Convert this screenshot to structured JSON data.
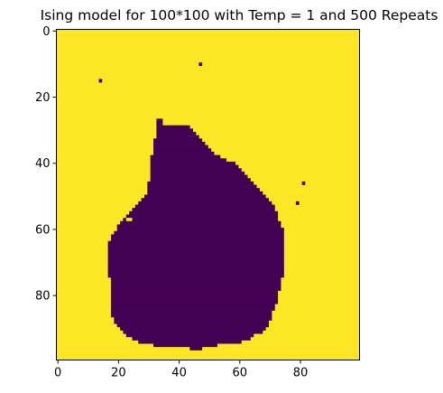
{
  "chart_data": {
    "type": "heatmap",
    "title": "Ising model for 100*100 with Temp = 1 and 500 Repeats",
    "xlabel": "",
    "ylabel": "",
    "grid_size": [
      100,
      100
    ],
    "xlim": [
      -0.5,
      99.5
    ],
    "ylim": [
      99.5,
      -0.5
    ],
    "xticks": [
      0,
      20,
      40,
      60,
      80
    ],
    "yticks": [
      0,
      20,
      40,
      60,
      80
    ],
    "grid": false,
    "colormap": "viridis",
    "colors": {
      "spin_up": "#fde725",
      "spin_down": "#440154"
    },
    "background_value": 1,
    "down_region": {
      "row_start": 27,
      "row_end": 96,
      "spans": [
        [
          27,
          33,
          34
        ],
        [
          28,
          33,
          34
        ],
        [
          29,
          33,
          43
        ],
        [
          30,
          33,
          44
        ],
        [
          31,
          33,
          45
        ],
        [
          32,
          33,
          46
        ],
        [
          33,
          32,
          47
        ],
        [
          34,
          32,
          48
        ],
        [
          35,
          32,
          49
        ],
        [
          36,
          32,
          50
        ],
        [
          37,
          32,
          51
        ],
        [
          38,
          31,
          53
        ],
        [
          39,
          31,
          55
        ],
        [
          40,
          31,
          58
        ],
        [
          41,
          31,
          59
        ],
        [
          42,
          31,
          60
        ],
        [
          43,
          31,
          61
        ],
        [
          44,
          31,
          62
        ],
        [
          45,
          31,
          63
        ],
        [
          46,
          30,
          64
        ],
        [
          47,
          30,
          65
        ],
        [
          48,
          30,
          66
        ],
        [
          49,
          30,
          67
        ],
        [
          50,
          29,
          68
        ],
        [
          51,
          28,
          69
        ],
        [
          52,
          27,
          70
        ],
        [
          53,
          26,
          71
        ],
        [
          54,
          25,
          71
        ],
        [
          55,
          24,
          72
        ],
        [
          56,
          23,
          72
        ],
        [
          57,
          22,
          72
        ],
        [
          58,
          21,
          73
        ],
        [
          59,
          20,
          73
        ],
        [
          60,
          20,
          74
        ],
        [
          61,
          19,
          74
        ],
        [
          62,
          18,
          74
        ],
        [
          63,
          18,
          74
        ],
        [
          64,
          17,
          74
        ],
        [
          65,
          17,
          74
        ],
        [
          66,
          17,
          74
        ],
        [
          67,
          17,
          74
        ],
        [
          68,
          17,
          74
        ],
        [
          69,
          17,
          74
        ],
        [
          70,
          17,
          74
        ],
        [
          71,
          17,
          74
        ],
        [
          72,
          17,
          74
        ],
        [
          73,
          17,
          74
        ],
        [
          74,
          17,
          74
        ],
        [
          75,
          18,
          73
        ],
        [
          76,
          18,
          73
        ],
        [
          77,
          18,
          73
        ],
        [
          78,
          18,
          73
        ],
        [
          79,
          18,
          72
        ],
        [
          80,
          18,
          72
        ],
        [
          81,
          18,
          72
        ],
        [
          82,
          18,
          72
        ],
        [
          83,
          18,
          71
        ],
        [
          84,
          18,
          71
        ],
        [
          85,
          18,
          70
        ],
        [
          86,
          18,
          70
        ],
        [
          87,
          19,
          70
        ],
        [
          88,
          19,
          69
        ],
        [
          89,
          20,
          69
        ],
        [
          90,
          21,
          68
        ],
        [
          91,
          22,
          67
        ],
        [
          92,
          23,
          64
        ],
        [
          93,
          25,
          63
        ],
        [
          94,
          27,
          60
        ],
        [
          95,
          32,
          52
        ],
        [
          96,
          44,
          47
        ]
      ],
      "indents": [
        [
          57,
          23,
          24
        ],
        [
          28,
          43,
          43
        ]
      ]
    },
    "isolated_down_cells": [
      [
        15,
        14
      ],
      [
        10,
        47
      ],
      [
        46,
        81
      ],
      [
        52,
        79
      ],
      [
        58,
        24
      ]
    ]
  }
}
